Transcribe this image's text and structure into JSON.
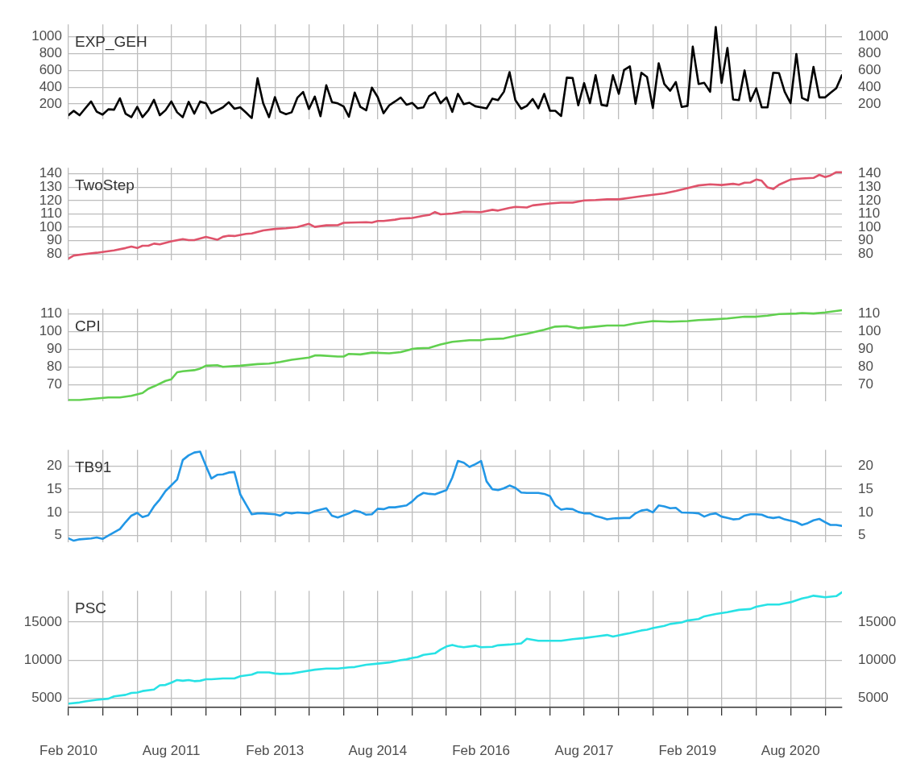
{
  "chart_data": [
    {
      "type": "line",
      "title": "EXP_GEH",
      "grid": true,
      "tick_labels": "y",
      "xlim": [
        "2010-02",
        "2021-05"
      ],
      "xticks": [
        {
          "value": "2010-02",
          "label": null
        },
        {
          "value": "2010-08",
          "label": null
        },
        {
          "value": "2011-02",
          "label": null
        },
        {
          "value": "2011-08",
          "label": null
        },
        {
          "value": "2012-02",
          "label": null
        },
        {
          "value": "2012-08",
          "label": null
        },
        {
          "value": "2013-02",
          "label": null
        },
        {
          "value": "2013-08",
          "label": null
        },
        {
          "value": "2014-02",
          "label": null
        },
        {
          "value": "2014-08",
          "label": null
        },
        {
          "value": "2015-02",
          "label": null
        },
        {
          "value": "2015-08",
          "label": null
        },
        {
          "value": "2016-02",
          "label": null
        },
        {
          "value": "2016-08",
          "label": null
        },
        {
          "value": "2017-02",
          "label": null
        },
        {
          "value": "2017-08",
          "label": null
        },
        {
          "value": "2018-02",
          "label": null
        },
        {
          "value": "2018-08",
          "label": null
        },
        {
          "value": "2019-02",
          "label": null
        },
        {
          "value": "2019-08",
          "label": null
        },
        {
          "value": "2020-02",
          "label": null
        },
        {
          "value": "2020-08",
          "label": null
        },
        {
          "value": "2021-02",
          "label": null
        }
      ],
      "ylim": [
        20,
        1150
      ],
      "yticks": [
        200,
        400,
        600,
        800,
        1000
      ],
      "y2lim": [
        20,
        1150
      ],
      "y2ticks": [
        200,
        400,
        600,
        800,
        1000
      ],
      "series": [
        {
          "color": "#000000",
          "x": [
            "2010-02",
            "2010-03",
            "2010-04",
            "2010-05",
            "2010-06",
            "2010-07",
            "2010-08",
            "2010-09",
            "2010-10",
            "2010-11",
            "2010-12",
            "2011-01",
            "2011-02",
            "2011-03",
            "2011-04",
            "2011-05",
            "2011-06",
            "2011-07",
            "2011-08",
            "2011-09",
            "2011-10",
            "2011-11",
            "2011-12",
            "2012-01",
            "2012-02",
            "2012-03",
            "2012-04",
            "2012-05",
            "2012-06",
            "2012-07",
            "2012-08",
            "2012-09",
            "2012-10",
            "2012-11",
            "2012-12",
            "2013-01",
            "2013-02",
            "2013-03",
            "2013-04",
            "2013-05",
            "2013-06",
            "2013-07",
            "2013-08",
            "2013-09",
            "2013-10",
            "2013-11",
            "2013-12",
            "2014-01",
            "2014-02",
            "2014-03",
            "2014-04",
            "2014-05",
            "2014-06",
            "2014-07",
            "2014-08",
            "2014-09",
            "2014-10",
            "2014-11",
            "2014-12",
            "2015-01",
            "2015-02",
            "2015-03",
            "2015-04",
            "2015-05",
            "2015-06",
            "2015-07",
            "2015-08",
            "2015-09",
            "2015-10",
            "2015-11",
            "2015-12",
            "2016-01",
            "2016-02",
            "2016-03",
            "2016-04",
            "2016-05",
            "2016-06",
            "2016-07",
            "2016-08",
            "2016-09",
            "2016-10",
            "2016-11",
            "2016-12",
            "2017-01",
            "2017-02",
            "2017-03",
            "2017-04",
            "2017-05",
            "2017-06",
            "2017-07",
            "2017-08",
            "2017-09",
            "2017-10",
            "2017-11",
            "2017-12",
            "2018-01",
            "2018-02",
            "2018-03",
            "2018-04",
            "2018-05",
            "2018-06",
            "2018-07",
            "2018-08",
            "2018-09",
            "2018-10",
            "2018-11",
            "2018-12",
            "2019-01",
            "2019-02",
            "2019-03",
            "2019-04",
            "2019-05",
            "2019-06",
            "2019-07",
            "2019-08",
            "2019-09",
            "2019-10",
            "2019-11",
            "2019-12",
            "2020-01",
            "2020-02",
            "2020-03",
            "2020-04",
            "2020-05",
            "2020-06",
            "2020-07",
            "2020-08",
            "2020-09",
            "2020-10",
            "2020-11",
            "2020-12",
            "2021-01",
            "2021-02",
            "2021-03",
            "2021-04",
            "2021-05"
          ],
          "values": [
            66,
            118,
            66,
            148,
            230,
            108,
            73,
            137,
            132,
            268,
            85,
            43,
            165,
            43,
            125,
            249,
            66,
            125,
            230,
            101,
            43,
            226,
            85,
            230,
            207,
            90,
            125,
            160,
            221,
            144,
            160,
            97,
            31,
            507,
            207,
            43,
            282,
            108,
            78,
            101,
            277,
            343,
            141,
            289,
            55,
            423,
            223,
            207,
            170,
            48,
            336,
            165,
            125,
            395,
            282,
            90,
            184,
            230,
            277,
            191,
            212,
            148,
            160,
            294,
            340,
            210,
            279,
            106,
            321,
            198,
            215,
            173,
            160,
            148,
            264,
            247,
            346,
            580,
            247,
            143,
            178,
            259,
            148,
            321,
            119,
            119,
            57,
            514,
            511,
            185,
            449,
            210,
            543,
            190,
            178,
            543,
            321,
            605,
            649,
            202,
            573,
            523,
            153,
            686,
            437,
            358,
            462,
            165,
            178,
            884,
            439,
            452,
            346,
            1118,
            452,
            869,
            254,
            247,
            600,
            235,
            388,
            160,
            160,
            573,
            568,
            346,
            210,
            797,
            272,
            242,
            642,
            279,
            279,
            333,
            388,
            543
          ]
        }
      ]
    },
    {
      "type": "line",
      "title": "TwoStep",
      "grid": true,
      "tick_labels": "y",
      "xlim": [
        "2010-02",
        "2021-05"
      ],
      "xticks": [
        {
          "value": "2010-02",
          "label": null
        },
        {
          "value": "2010-08",
          "label": null
        },
        {
          "value": "2011-02",
          "label": null
        },
        {
          "value": "2011-08",
          "label": null
        },
        {
          "value": "2012-02",
          "label": null
        },
        {
          "value": "2012-08",
          "label": null
        },
        {
          "value": "2013-02",
          "label": null
        },
        {
          "value": "2013-08",
          "label": null
        },
        {
          "value": "2014-02",
          "label": null
        },
        {
          "value": "2014-08",
          "label": null
        },
        {
          "value": "2015-02",
          "label": null
        },
        {
          "value": "2015-08",
          "label": null
        },
        {
          "value": "2016-02",
          "label": null
        },
        {
          "value": "2016-08",
          "label": null
        },
        {
          "value": "2017-02",
          "label": null
        },
        {
          "value": "2017-08",
          "label": null
        },
        {
          "value": "2018-02",
          "label": null
        },
        {
          "value": "2018-08",
          "label": null
        },
        {
          "value": "2019-02",
          "label": null
        },
        {
          "value": "2019-08",
          "label": null
        },
        {
          "value": "2020-02",
          "label": null
        },
        {
          "value": "2020-08",
          "label": null
        },
        {
          "value": "2021-02",
          "label": null
        }
      ],
      "ylim": [
        75.5,
        144.5
      ],
      "yticks": [
        80,
        90,
        100,
        110,
        120,
        130,
        140
      ],
      "y2lim": [
        75.5,
        144.5
      ],
      "y2ticks": [
        80,
        90,
        100,
        110,
        120,
        130,
        140
      ],
      "series": [
        {
          "color": "#df536b",
          "x": [
            "2010-02",
            "2010-03",
            "2010-05",
            "2010-07",
            "2010-10",
            "2010-12",
            "2011-01",
            "2011-02",
            "2011-03",
            "2011-04",
            "2011-05",
            "2011-06",
            "2011-08",
            "2011-10",
            "2011-11",
            "2011-12",
            "2012-02",
            "2012-04",
            "2012-05",
            "2012-06",
            "2012-07",
            "2012-09",
            "2012-10",
            "2012-12",
            "2013-02",
            "2013-04",
            "2013-06",
            "2013-08",
            "2013-09",
            "2013-11",
            "2014-01",
            "2014-02",
            "2014-06",
            "2014-07",
            "2014-08",
            "2014-09",
            "2014-11",
            "2014-12",
            "2015-02",
            "2015-04",
            "2015-05",
            "2015-06",
            "2015-07",
            "2015-09",
            "2015-11",
            "2016-02",
            "2016-04",
            "2016-05",
            "2016-07",
            "2016-08",
            "2016-10",
            "2016-11",
            "2017-02",
            "2017-04",
            "2017-06",
            "2017-08",
            "2017-10",
            "2017-12",
            "2018-02",
            "2018-04",
            "2018-06",
            "2018-08",
            "2018-10",
            "2018-12",
            "2019-02",
            "2019-04",
            "2019-06",
            "2019-08",
            "2019-10",
            "2019-11",
            "2019-12",
            "2020-01",
            "2020-02",
            "2020-03",
            "2020-04",
            "2020-05",
            "2020-06",
            "2020-08",
            "2020-10",
            "2020-12",
            "2021-01",
            "2021-02",
            "2021-03",
            "2021-04",
            "2021-05"
          ],
          "values": [
            76.6,
            78.9,
            80,
            81,
            82.8,
            84.5,
            85.6,
            84.5,
            86.2,
            86.2,
            87.8,
            87.3,
            89.5,
            91.2,
            90.4,
            90.4,
            92.9,
            90.7,
            92.9,
            93.7,
            93.5,
            95.1,
            95.4,
            97.7,
            98.8,
            99.3,
            100.2,
            102.6,
            100.3,
            101.5,
            101.6,
            103.4,
            103.8,
            103.5,
            104.7,
            104.7,
            105.7,
            106.5,
            107,
            108.6,
            109.2,
            111.4,
            109.7,
            110.3,
            111.7,
            111.4,
            113.1,
            112.5,
            114.5,
            115.3,
            114.8,
            116.4,
            117.8,
            118.4,
            118.4,
            120.1,
            120.4,
            120.9,
            120.9,
            122,
            123.2,
            124.3,
            125.4,
            127.1,
            129.3,
            131.3,
            132.1,
            131.6,
            132.5,
            131.8,
            133.3,
            133.5,
            135.7,
            134.8,
            129.8,
            128.6,
            131.8,
            135.7,
            136.5,
            136.9,
            139.2,
            137.6,
            138.8,
            141.2,
            141.2
          ]
        }
      ]
    },
    {
      "type": "line",
      "title": "CPI",
      "grid": true,
      "tick_labels": "y",
      "xlim": [
        "2010-02",
        "2021-05"
      ],
      "xticks": [
        {
          "value": "2010-02",
          "label": null
        },
        {
          "value": "2010-08",
          "label": null
        },
        {
          "value": "2011-02",
          "label": null
        },
        {
          "value": "2011-08",
          "label": null
        },
        {
          "value": "2012-02",
          "label": null
        },
        {
          "value": "2012-08",
          "label": null
        },
        {
          "value": "2013-02",
          "label": null
        },
        {
          "value": "2013-08",
          "label": null
        },
        {
          "value": "2014-02",
          "label": null
        },
        {
          "value": "2014-08",
          "label": null
        },
        {
          "value": "2015-02",
          "label": null
        },
        {
          "value": "2015-08",
          "label": null
        },
        {
          "value": "2016-02",
          "label": null
        },
        {
          "value": "2016-08",
          "label": null
        },
        {
          "value": "2017-02",
          "label": null
        },
        {
          "value": "2017-08",
          "label": null
        },
        {
          "value": "2018-02",
          "label": null
        },
        {
          "value": "2018-08",
          "label": null
        },
        {
          "value": "2019-02",
          "label": null
        },
        {
          "value": "2019-08",
          "label": null
        },
        {
          "value": "2020-02",
          "label": null
        },
        {
          "value": "2020-08",
          "label": null
        },
        {
          "value": "2021-02",
          "label": null
        }
      ],
      "ylim": [
        60.8,
        113
      ],
      "yticks": [
        70,
        80,
        90,
        100,
        110
      ],
      "y2lim": [
        60.8,
        113
      ],
      "y2ticks": [
        70,
        80,
        90,
        100,
        110
      ],
      "series": [
        {
          "color": "#61d04f",
          "x": [
            "2010-02",
            "2010-04",
            "2010-05",
            "2010-07",
            "2010-09",
            "2010-11",
            "2011-01",
            "2011-03",
            "2011-04",
            "2011-05",
            "2011-07",
            "2011-08",
            "2011-09",
            "2011-10",
            "2011-12",
            "2012-01",
            "2012-02",
            "2012-04",
            "2012-05",
            "2012-08",
            "2012-11",
            "2013-01",
            "2013-03",
            "2013-05",
            "2013-08",
            "2013-09",
            "2013-10",
            "2014-01",
            "2014-02",
            "2014-03",
            "2014-05",
            "2014-07",
            "2014-10",
            "2014-12",
            "2015-02",
            "2015-03",
            "2015-05",
            "2015-07",
            "2015-09",
            "2015-12",
            "2016-02",
            "2016-03",
            "2016-06",
            "2016-08",
            "2016-10",
            "2017-01",
            "2017-03",
            "2017-05",
            "2017-07",
            "2017-10",
            "2017-12",
            "2018-03",
            "2018-05",
            "2018-08",
            "2018-11",
            "2019-02",
            "2019-04",
            "2019-06",
            "2019-09",
            "2019-12",
            "2020-02",
            "2020-04",
            "2020-06",
            "2020-09",
            "2020-10",
            "2020-12",
            "2021-02",
            "2021-05"
          ],
          "values": [
            61.4,
            61.4,
            61.7,
            62.3,
            62.9,
            62.9,
            63.8,
            65.4,
            67.8,
            69.1,
            72.2,
            73.1,
            77.1,
            77.7,
            78.3,
            79.2,
            80.8,
            81.1,
            80.2,
            80.8,
            81.7,
            82,
            82.9,
            84.2,
            85.4,
            86.6,
            86.6,
            86,
            86,
            87.5,
            87.2,
            88.2,
            87.8,
            88.5,
            90.3,
            90.6,
            90.9,
            92.8,
            94.3,
            95.2,
            95.2,
            95.8,
            96.2,
            97.7,
            98.9,
            101.1,
            102.9,
            103.2,
            102,
            102.9,
            103.5,
            103.5,
            104.8,
            106,
            105.7,
            106,
            106.6,
            106.9,
            107.5,
            108.5,
            108.5,
            109.1,
            110,
            110.3,
            110.6,
            110.3,
            110.9,
            112.2
          ]
        }
      ]
    },
    {
      "type": "line",
      "title": "TB91",
      "grid": true,
      "tick_labels": "y",
      "xlim": [
        "2010-02",
        "2021-05"
      ],
      "xticks": [
        {
          "value": "2010-02",
          "label": null
        },
        {
          "value": "2010-08",
          "label": null
        },
        {
          "value": "2011-02",
          "label": null
        },
        {
          "value": "2011-08",
          "label": null
        },
        {
          "value": "2012-02",
          "label": null
        },
        {
          "value": "2012-08",
          "label": null
        },
        {
          "value": "2013-02",
          "label": null
        },
        {
          "value": "2013-08",
          "label": null
        },
        {
          "value": "2014-02",
          "label": null
        },
        {
          "value": "2014-08",
          "label": null
        },
        {
          "value": "2015-02",
          "label": null
        },
        {
          "value": "2015-08",
          "label": null
        },
        {
          "value": "2016-02",
          "label": null
        },
        {
          "value": "2016-08",
          "label": null
        },
        {
          "value": "2017-02",
          "label": null
        },
        {
          "value": "2017-08",
          "label": null
        },
        {
          "value": "2018-02",
          "label": null
        },
        {
          "value": "2018-08",
          "label": null
        },
        {
          "value": "2019-02",
          "label": null
        },
        {
          "value": "2019-08",
          "label": null
        },
        {
          "value": "2020-02",
          "label": null
        },
        {
          "value": "2020-08",
          "label": null
        },
        {
          "value": "2021-02",
          "label": null
        }
      ],
      "ylim": [
        3.6,
        23.5
      ],
      "yticks": [
        5,
        10,
        15,
        20
      ],
      "y2lim": [
        3.6,
        23.5
      ],
      "y2ticks": [
        5,
        10,
        15,
        20
      ],
      "series": [
        {
          "color": "#2297e6",
          "x": [
            "2010-02",
            "2010-03",
            "2010-04",
            "2010-06",
            "2010-07",
            "2010-08",
            "2010-09",
            "2010-11",
            "2010-12",
            "2011-01",
            "2011-02",
            "2011-03",
            "2011-04",
            "2011-05",
            "2011-06",
            "2011-07",
            "2011-09",
            "2011-10",
            "2011-11",
            "2011-12",
            "2012-01",
            "2012-02",
            "2012-03",
            "2012-04",
            "2012-05",
            "2012-06",
            "2012-07",
            "2012-08",
            "2012-09",
            "2012-10",
            "2012-11",
            "2012-12",
            "2013-02",
            "2013-03",
            "2013-04",
            "2013-05",
            "2013-06",
            "2013-08",
            "2013-09",
            "2013-11",
            "2013-12",
            "2014-01",
            "2014-03",
            "2014-04",
            "2014-05",
            "2014-06",
            "2014-07",
            "2014-08",
            "2014-09",
            "2014-10",
            "2014-11",
            "2015-01",
            "2015-02",
            "2015-03",
            "2015-04",
            "2015-05",
            "2015-06",
            "2015-08",
            "2015-09",
            "2015-10",
            "2015-11",
            "2015-12",
            "2016-01",
            "2016-02",
            "2016-03",
            "2016-04",
            "2016-05",
            "2016-06",
            "2016-07",
            "2016-08",
            "2016-09",
            "2016-10",
            "2016-12",
            "2017-01",
            "2017-02",
            "2017-03",
            "2017-04",
            "2017-05",
            "2017-06",
            "2017-07",
            "2017-08",
            "2017-09",
            "2017-10",
            "2017-11",
            "2017-12",
            "2018-01",
            "2018-03",
            "2018-04",
            "2018-05",
            "2018-06",
            "2018-07",
            "2018-08",
            "2018-09",
            "2018-10",
            "2018-11",
            "2018-12",
            "2019-01",
            "2019-03",
            "2019-04",
            "2019-05",
            "2019-06",
            "2019-07",
            "2019-08",
            "2019-09",
            "2019-10",
            "2019-11",
            "2019-12",
            "2020-01",
            "2020-02",
            "2020-03",
            "2020-04",
            "2020-05",
            "2020-06",
            "2020-07",
            "2020-09",
            "2020-10",
            "2020-11",
            "2020-12",
            "2021-01",
            "2021-02",
            "2021-03",
            "2021-04",
            "2021-05"
          ],
          "values": [
            4.4,
            3.9,
            4.2,
            4.4,
            4.6,
            4.3,
            5,
            6.4,
            7.9,
            9.3,
            9.9,
            9,
            9.4,
            11.3,
            12.8,
            14.6,
            17.1,
            21.3,
            22.3,
            22.9,
            23.1,
            20,
            17.3,
            18.1,
            18.2,
            18.6,
            18.7,
            13.9,
            11.7,
            9.6,
            9.8,
            9.8,
            9.6,
            9.3,
            10,
            9.8,
            10,
            9.8,
            10.3,
            10.9,
            9.3,
            8.9,
            9.8,
            10.4,
            10.1,
            9.5,
            9.6,
            10.8,
            10.7,
            11.1,
            11.1,
            11.5,
            12.4,
            13.5,
            14.2,
            14,
            13.9,
            14.8,
            17.5,
            21.1,
            20.7,
            19.8,
            20.4,
            21.1,
            16.7,
            15,
            14.8,
            15.2,
            15.8,
            15.3,
            14.3,
            14.2,
            14.2,
            14,
            13.5,
            11.5,
            10.6,
            10.8,
            10.7,
            10.1,
            9.8,
            9.8,
            9.2,
            8.9,
            8.5,
            8.7,
            8.8,
            8.8,
            9.8,
            10.4,
            10.6,
            10,
            11.5,
            11.3,
            10.9,
            11,
            10,
            9.9,
            9.8,
            9.1,
            9.6,
            9.8,
            9.1,
            8.8,
            8.5,
            8.6,
            9.3,
            9.6,
            9.6,
            9.5,
            9,
            8.8,
            9,
            8.5,
            7.9,
            7.3,
            7.7,
            8.3,
            8.6,
            7.9,
            7.3,
            7.3,
            7.1
          ]
        }
      ]
    },
    {
      "type": "line",
      "title": "PSC",
      "grid": true,
      "xlim": [
        "2010-02",
        "2021-05"
      ],
      "xticks": [
        {
          "value": "2010-02",
          "label": "Feb 2010"
        },
        {
          "value": "2010-08",
          "label": null
        },
        {
          "value": "2011-02",
          "label": null
        },
        {
          "value": "2011-08",
          "label": "Aug 2011"
        },
        {
          "value": "2012-02",
          "label": null
        },
        {
          "value": "2012-08",
          "label": null
        },
        {
          "value": "2013-02",
          "label": "Feb 2013"
        },
        {
          "value": "2013-08",
          "label": null
        },
        {
          "value": "2014-02",
          "label": null
        },
        {
          "value": "2014-08",
          "label": "Aug 2014"
        },
        {
          "value": "2015-02",
          "label": null
        },
        {
          "value": "2015-08",
          "label": null
        },
        {
          "value": "2016-02",
          "label": "Feb 2016"
        },
        {
          "value": "2016-08",
          "label": null
        },
        {
          "value": "2017-02",
          "label": null
        },
        {
          "value": "2017-08",
          "label": "Aug 2017"
        },
        {
          "value": "2018-02",
          "label": null
        },
        {
          "value": "2018-08",
          "label": null
        },
        {
          "value": "2019-02",
          "label": "Feb 2019"
        },
        {
          "value": "2019-08",
          "label": null
        },
        {
          "value": "2020-02",
          "label": null
        },
        {
          "value": "2020-08",
          "label": "Aug 2020"
        },
        {
          "value": "2021-02",
          "label": null
        }
      ],
      "ylim": [
        3800,
        19100
      ],
      "yticks": [
        5000,
        10000,
        15000
      ],
      "y2lim": [
        3800,
        19100
      ],
      "y2ticks": [
        5000,
        10000,
        15000
      ],
      "series": [
        {
          "color": "#28e2e5",
          "x": [
            "2010-02",
            "2010-04",
            "2010-05",
            "2010-07",
            "2010-09",
            "2010-10",
            "2010-12",
            "2011-01",
            "2011-02",
            "2011-03",
            "2011-05",
            "2011-06",
            "2011-07",
            "2011-08",
            "2011-09",
            "2011-10",
            "2011-11",
            "2011-12",
            "2012-01",
            "2012-02",
            "2012-03",
            "2012-05",
            "2012-07",
            "2012-08",
            "2012-10",
            "2012-11",
            "2013-01",
            "2013-02",
            "2013-03",
            "2013-05",
            "2013-07",
            "2013-09",
            "2013-11",
            "2014-01",
            "2014-03",
            "2014-04",
            "2014-06",
            "2014-08",
            "2014-10",
            "2014-12",
            "2015-01",
            "2015-02",
            "2015-03",
            "2015-04",
            "2015-06",
            "2015-07",
            "2015-08",
            "2015-09",
            "2015-10",
            "2015-11",
            "2016-01",
            "2016-02",
            "2016-04",
            "2016-05",
            "2016-07",
            "2016-09",
            "2016-10",
            "2016-12",
            "2017-02",
            "2017-04",
            "2017-06",
            "2017-08",
            "2017-10",
            "2017-12",
            "2018-01",
            "2018-03",
            "2018-04",
            "2018-06",
            "2018-07",
            "2018-08",
            "2018-10",
            "2018-11",
            "2019-01",
            "2019-02",
            "2019-04",
            "2019-05",
            "2019-07",
            "2019-09",
            "2019-11",
            "2020-01",
            "2020-02",
            "2020-04",
            "2020-06",
            "2020-07",
            "2020-08",
            "2020-10",
            "2020-11",
            "2020-12",
            "2021-02",
            "2021-04",
            "2021-05"
          ],
          "values": [
            4300,
            4450,
            4600,
            4800,
            4950,
            5250,
            5450,
            5700,
            5750,
            5950,
            6150,
            6700,
            6750,
            7050,
            7400,
            7300,
            7400,
            7250,
            7300,
            7500,
            7500,
            7600,
            7600,
            7900,
            8100,
            8400,
            8400,
            8250,
            8200,
            8250,
            8500,
            8750,
            8900,
            8900,
            9050,
            9100,
            9400,
            9550,
            9700,
            10000,
            10100,
            10300,
            10400,
            10700,
            10900,
            11400,
            11800,
            12000,
            11800,
            11700,
            11900,
            11700,
            11750,
            11950,
            12050,
            12200,
            12800,
            12550,
            12550,
            12550,
            12750,
            12900,
            13100,
            13300,
            13100,
            13400,
            13550,
            13900,
            14000,
            14200,
            14500,
            14750,
            14950,
            15200,
            15400,
            15750,
            16050,
            16300,
            16600,
            16700,
            17000,
            17300,
            17300,
            17450,
            17600,
            18100,
            18250,
            18450,
            18250,
            18400,
            18900
          ]
        }
      ]
    }
  ]
}
